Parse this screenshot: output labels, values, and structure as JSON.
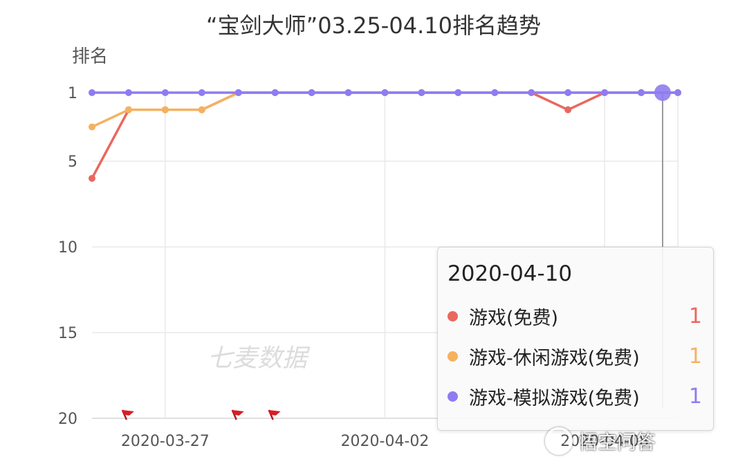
{
  "chart_data": {
    "type": "line",
    "title": "“宝剑大师”03.25-04.10排名趋势",
    "ylabel": "排名",
    "xlabel": "",
    "y_inverted": true,
    "ylim": [
      20,
      1
    ],
    "yticks": [
      1,
      5,
      10,
      15,
      20
    ],
    "x": [
      "2020-03-25",
      "2020-03-26",
      "2020-03-27",
      "2020-03-28",
      "2020-03-29",
      "2020-03-30",
      "2020-03-31",
      "2020-04-01",
      "2020-04-02",
      "2020-04-03",
      "2020-04-04",
      "2020-04-05",
      "2020-04-06",
      "2020-04-07",
      "2020-04-08",
      "2020-04-09",
      "2020-04-10"
    ],
    "xticks": [
      "2020-03-27",
      "2020-04-02",
      "2020-04-08"
    ],
    "series": [
      {
        "name": "游戏(免费)",
        "color": "#e8685f",
        "values": [
          6,
          2,
          2,
          2,
          1,
          1,
          1,
          1,
          1,
          1,
          1,
          1,
          1,
          2,
          1,
          1,
          1
        ]
      },
      {
        "name": "游戏-休闲游戏(免费)",
        "color": "#f4b25f",
        "values": [
          3,
          2,
          2,
          2,
          1,
          1,
          1,
          1,
          1,
          1,
          1,
          1,
          1,
          1,
          1,
          1,
          1
        ]
      },
      {
        "name": "游戏-模拟游戏(免费)",
        "color": "#8f7cf0",
        "values": [
          1,
          1,
          1,
          1,
          1,
          1,
          1,
          1,
          1,
          1,
          1,
          1,
          1,
          1,
          1,
          1,
          1
        ]
      }
    ],
    "grid": true,
    "watermark": "七麦数据",
    "event_flags": [
      "2020-03-26",
      "2020-03-29",
      "2020-03-30"
    ],
    "hover_index": 16
  },
  "tooltip": {
    "date": "2020-04-10",
    "rows": [
      {
        "name": "游戏(免费)",
        "value": "1",
        "color": "#e8685f"
      },
      {
        "name": "游戏-休闲游戏(免费)",
        "value": "1",
        "color": "#f4b25f"
      },
      {
        "name": "游戏-模拟游戏(免费)",
        "value": "1",
        "color": "#8f7cf0"
      }
    ]
  },
  "source_watermark": "悟空问答"
}
